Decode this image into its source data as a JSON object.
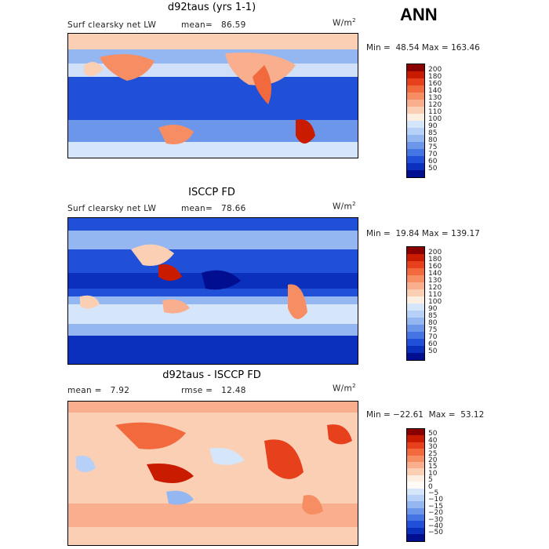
{
  "season": "ANN",
  "units_base": "W/m",
  "units_exp": "2",
  "panels": [
    {
      "title": "d92taus (yrs 1-1)",
      "left_label": "Surf clearsky net LW",
      "stat_label": "mean=",
      "stat_value": "86.59",
      "min_label": "Min =",
      "min_value": "48.54",
      "max_label": "Max =",
      "max_value": "163.46"
    },
    {
      "title": "ISCCP FD",
      "left_label": "Surf clearsky net LW",
      "stat_label": "mean=",
      "stat_value": "78.66",
      "min_label": "Min =",
      "min_value": "19.84",
      "max_label": "Max =",
      "max_value": "139.17"
    },
    {
      "title": "d92taus - ISCCP FD",
      "left_label": "mean =",
      "left_value": "7.92",
      "stat_label": "rmse =",
      "stat_value": "12.48",
      "min_label": "Min =",
      "min_value": "−22.61",
      "max_label": "Max =",
      "max_value": "53.12"
    }
  ],
  "colorbar_abs": {
    "levels": [
      "200",
      "180",
      "160",
      "140",
      "130",
      "120",
      "110",
      "100",
      "90",
      "85",
      "80",
      "75",
      "70",
      "60",
      "50"
    ],
    "colors": [
      "#8b0000",
      "#c81b00",
      "#e7401d",
      "#f2693d",
      "#f78e63",
      "#f9ae8d",
      "#fbcfb4",
      "#fdeee2",
      "#d6e6fa",
      "#b7d0f7",
      "#94b7f2",
      "#6c96ea",
      "#4574e3",
      "#2050d8",
      "#0a30bd",
      "#000e8f"
    ]
  },
  "colorbar_diff": {
    "levels": [
      "50",
      "40",
      "30",
      "25",
      "20",
      "15",
      "10",
      "5",
      "0",
      "−5",
      "−10",
      "−15",
      "−20",
      "−30",
      "−40",
      "−50"
    ],
    "colors": [
      "#8b0000",
      "#c81b00",
      "#e7401d",
      "#f2693d",
      "#f78e63",
      "#f9ae8d",
      "#fbcfb4",
      "#fdeee2",
      "#fffaf5",
      "#d6e6fa",
      "#b7d0f7",
      "#94b7f2",
      "#6c96ea",
      "#4574e3",
      "#2050d8",
      "#0a30bd",
      "#000e8f"
    ]
  }
}
